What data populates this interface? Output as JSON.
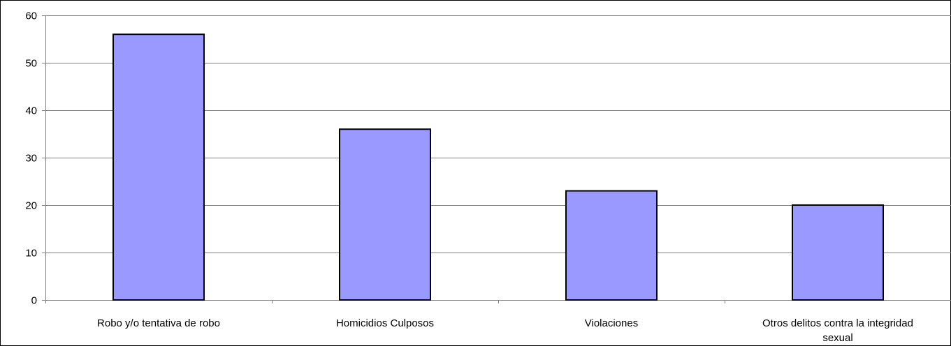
{
  "chart_data": {
    "type": "bar",
    "title": "",
    "xlabel": "",
    "ylabel": "",
    "categories": [
      [
        "Robo y/o tentativa de robo"
      ],
      [
        "Homicidios Culposos"
      ],
      [
        "Violaciones"
      ],
      [
        "Otros delitos contra la integridad",
        "sexual"
      ]
    ],
    "values": [
      56,
      36,
      23,
      20
    ],
    "ylim": [
      0,
      60
    ],
    "yticks": [
      0,
      10,
      20,
      30,
      40,
      50,
      60
    ],
    "grid": true,
    "legend": "none",
    "colors": {
      "bar_fill": "#9999ff",
      "bar_stroke": "#000000",
      "grid": "#808080",
      "axis": "#808080"
    }
  }
}
